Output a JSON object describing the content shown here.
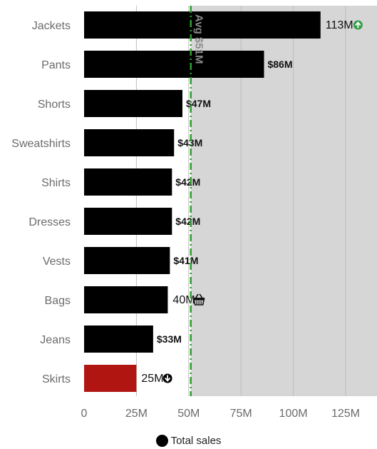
{
  "chart_data": {
    "type": "bar",
    "orientation": "horizontal",
    "categories": [
      "Jackets",
      "Pants",
      "Shorts",
      "Sweatshirts",
      "Shirts",
      "Dresses",
      "Vests",
      "Bags",
      "Jeans",
      "Skirts"
    ],
    "series": [
      {
        "name": "Total sales",
        "values": [
          113,
          86,
          47,
          43,
          42,
          42,
          41,
          40,
          33,
          25
        ]
      }
    ],
    "value_labels": [
      "113M",
      "$86M",
      "$47M",
      "$43M",
      "$42M",
      "$42M",
      "$41M",
      "40M",
      "$33M",
      "25M"
    ],
    "value_icons": [
      "arrow-up-circle-icon",
      "",
      "",
      "",
      "",
      "",
      "",
      "basket-icon",
      "",
      "arrow-down-circle-icon"
    ],
    "bar_colors": [
      "#000000",
      "#000000",
      "#000000",
      "#000000",
      "#000000",
      "#000000",
      "#000000",
      "#000000",
      "#000000",
      "#b01512"
    ],
    "xlim": [
      0,
      140
    ],
    "x_ticks": [
      0,
      25,
      50,
      75,
      100,
      125
    ],
    "x_tick_labels": [
      "0",
      "25M",
      "50M",
      "75M",
      "100M",
      "125M"
    ],
    "shaded_region_from": 51,
    "reference_line": {
      "value": 51,
      "label": "Avg $51M",
      "color": "#2e9e2e",
      "style": "dash-dot"
    },
    "grid": true,
    "legend": {
      "position": "bottom",
      "entries": [
        "Total sales"
      ]
    },
    "colors": {
      "bar": "#000000",
      "highlight": "#b01512",
      "shade": "#d6d6d6",
      "gridline": "#bdbdbd",
      "up_icon": "#2f9e44",
      "down_icon": "#000000"
    }
  }
}
